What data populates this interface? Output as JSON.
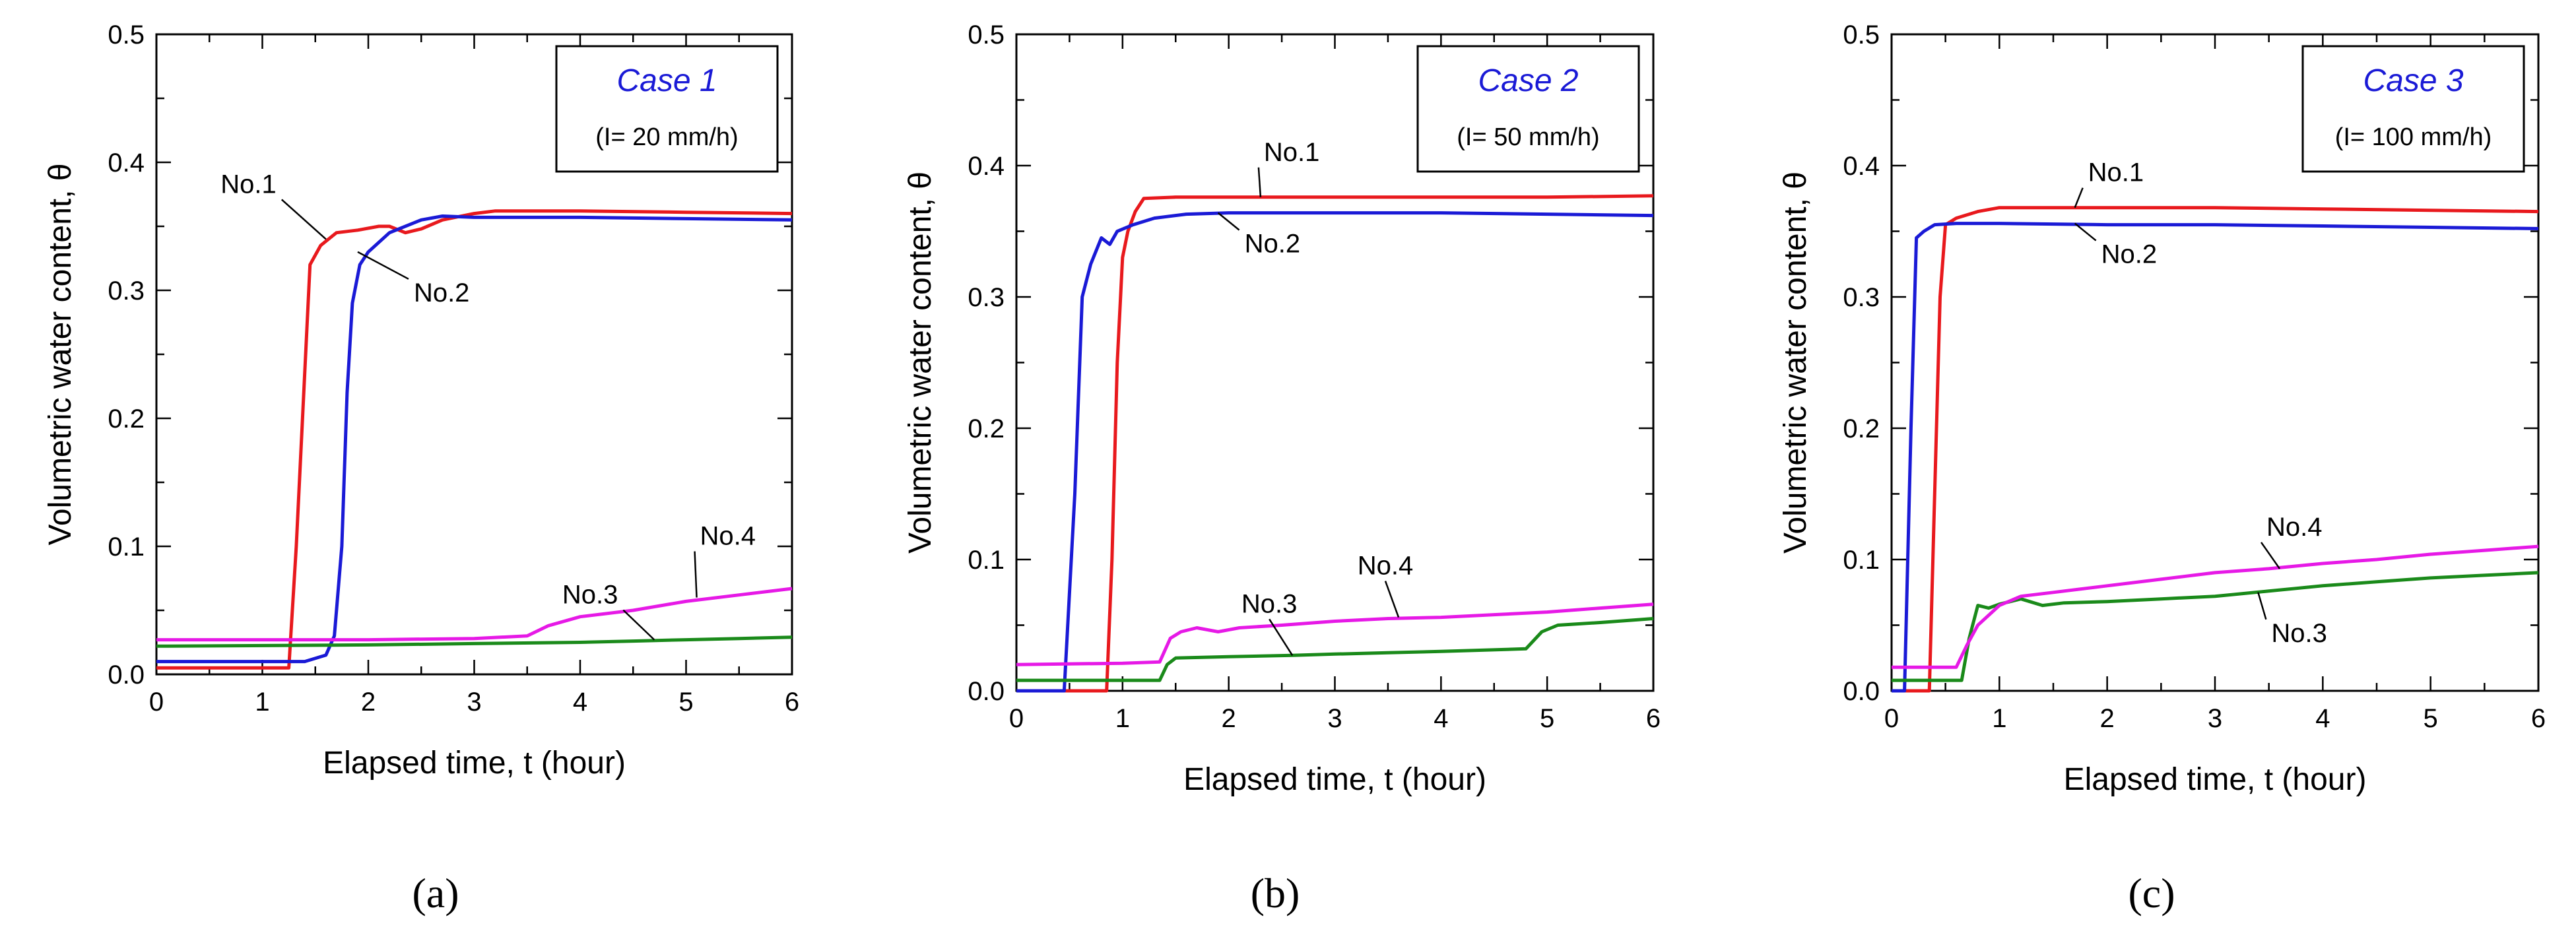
{
  "figure": {
    "panel_labels": [
      "(a)",
      "(b)",
      "(c)"
    ]
  },
  "chart_data": [
    {
      "type": "line",
      "panel": "(a)",
      "title": "Case 1",
      "subtitle": "(I= 20 mm/h)",
      "xlabel": "Elapsed time, t (hour)",
      "ylabel": "Volumetric water content, θ",
      "xlim": [
        0,
        6
      ],
      "ylim": [
        0,
        0.5
      ],
      "xticks": [
        0,
        1,
        2,
        3,
        4,
        5,
        6
      ],
      "yticks": [
        0.0,
        0.1,
        0.2,
        0.3,
        0.4,
        0.5
      ],
      "xtick_labels": [
        "0",
        "1",
        "2",
        "3",
        "4",
        "5",
        "6"
      ],
      "ytick_labels": [
        "0.0",
        "0.1",
        "0.2",
        "0.3",
        "0.4",
        "0.5"
      ],
      "series": [
        {
          "name": "No.1",
          "color": "#e8191d",
          "x": [
            0,
            1.25,
            1.32,
            1.45,
            1.55,
            1.7,
            1.9,
            2.1,
            2.2,
            2.35,
            2.5,
            2.7,
            3.0,
            3.2,
            4.0,
            5.0,
            6.0
          ],
          "y": [
            0.005,
            0.005,
            0.1,
            0.32,
            0.335,
            0.345,
            0.347,
            0.35,
            0.35,
            0.345,
            0.348,
            0.355,
            0.36,
            0.362,
            0.362,
            0.361,
            0.36
          ]
        },
        {
          "name": "No.2",
          "color": "#1a1ad6",
          "x": [
            0,
            1.4,
            1.6,
            1.68,
            1.75,
            1.8,
            1.85,
            1.92,
            2.0,
            2.2,
            2.5,
            2.7,
            3.0,
            4.0,
            5.0,
            6.0
          ],
          "y": [
            0.01,
            0.01,
            0.015,
            0.03,
            0.1,
            0.22,
            0.29,
            0.32,
            0.33,
            0.345,
            0.355,
            0.358,
            0.357,
            0.357,
            0.356,
            0.355
          ]
        },
        {
          "name": "No.3",
          "color": "#1a8a1a",
          "x": [
            0,
            2.0,
            3.0,
            4.0,
            4.5,
            5.0,
            5.5,
            6.0
          ],
          "y": [
            0.022,
            0.023,
            0.024,
            0.025,
            0.026,
            0.027,
            0.028,
            0.029
          ]
        },
        {
          "name": "No.4",
          "color": "#e619e6",
          "x": [
            0,
            1.0,
            2.0,
            3.0,
            3.5,
            3.7,
            4.0,
            4.5,
            5.0,
            5.5,
            6.0
          ],
          "y": [
            0.027,
            0.027,
            0.027,
            0.028,
            0.03,
            0.038,
            0.045,
            0.05,
            0.057,
            0.062,
            0.067
          ]
        }
      ],
      "annotations": [
        {
          "text": "No.1",
          "series": "No.1"
        },
        {
          "text": "No.2",
          "series": "No.2"
        },
        {
          "text": "No.3",
          "series": "No.3"
        },
        {
          "text": "No.4",
          "series": "No.4"
        }
      ]
    },
    {
      "type": "line",
      "panel": "(b)",
      "title": "Case 2",
      "subtitle": "(I= 50 mm/h)",
      "xlabel": "Elapsed time, t (hour)",
      "ylabel": "Volumetric water content, θ",
      "xlim": [
        0,
        6
      ],
      "ylim": [
        0,
        0.5
      ],
      "xticks": [
        0,
        1,
        2,
        3,
        4,
        5,
        6
      ],
      "yticks": [
        0.0,
        0.1,
        0.2,
        0.3,
        0.4,
        0.5
      ],
      "xtick_labels": [
        "0",
        "1",
        "2",
        "3",
        "4",
        "5",
        "6"
      ],
      "ytick_labels": [
        "0.0",
        "0.1",
        "0.2",
        "0.3",
        "0.4",
        "0.5"
      ],
      "series": [
        {
          "name": "No.1",
          "color": "#e8191d",
          "x": [
            0,
            0.85,
            0.9,
            0.95,
            1.0,
            1.05,
            1.12,
            1.2,
            1.5,
            2.0,
            3.0,
            4.0,
            5.0,
            6.0
          ],
          "y": [
            0.0,
            0.0,
            0.1,
            0.25,
            0.33,
            0.35,
            0.365,
            0.375,
            0.376,
            0.376,
            0.376,
            0.376,
            0.376,
            0.377
          ]
        },
        {
          "name": "No.2",
          "color": "#1a1ad6",
          "x": [
            0,
            0.45,
            0.55,
            0.62,
            0.7,
            0.8,
            0.88,
            0.95,
            1.1,
            1.3,
            1.6,
            2.0,
            3.0,
            4.0,
            5.0,
            6.0
          ],
          "y": [
            0.0,
            0.0,
            0.15,
            0.3,
            0.325,
            0.345,
            0.34,
            0.35,
            0.355,
            0.36,
            0.363,
            0.364,
            0.364,
            0.364,
            0.363,
            0.362
          ]
        },
        {
          "name": "No.3",
          "color": "#1a8a1a",
          "x": [
            0,
            1.35,
            1.42,
            1.5,
            2.0,
            2.6,
            3.0,
            3.5,
            4.0,
            4.8,
            4.95,
            5.1,
            5.5,
            6.0
          ],
          "y": [
            0.008,
            0.008,
            0.02,
            0.025,
            0.026,
            0.027,
            0.028,
            0.029,
            0.03,
            0.032,
            0.045,
            0.05,
            0.052,
            0.055
          ]
        },
        {
          "name": "No.4",
          "color": "#e619e6",
          "x": [
            0,
            1.0,
            1.35,
            1.45,
            1.55,
            1.7,
            1.9,
            2.1,
            2.5,
            3.0,
            3.5,
            4.0,
            4.5,
            5.0,
            5.5,
            6.0
          ],
          "y": [
            0.02,
            0.021,
            0.022,
            0.04,
            0.045,
            0.048,
            0.045,
            0.048,
            0.05,
            0.053,
            0.055,
            0.056,
            0.058,
            0.06,
            0.063,
            0.066
          ]
        }
      ],
      "annotations": [
        {
          "text": "No.1",
          "series": "No.1"
        },
        {
          "text": "No.2",
          "series": "No.2"
        },
        {
          "text": "No.3",
          "series": "No.3"
        },
        {
          "text": "No.4",
          "series": "No.4"
        }
      ]
    },
    {
      "type": "line",
      "panel": "(c)",
      "title": "Case 3",
      "subtitle": "(I= 100 mm/h)",
      "xlabel": "Elapsed time, t (hour)",
      "ylabel": "Volumetric water content, θ",
      "xlim": [
        0,
        6
      ],
      "ylim": [
        0,
        0.5
      ],
      "xticks": [
        0,
        1,
        2,
        3,
        4,
        5,
        6
      ],
      "yticks": [
        0.0,
        0.1,
        0.2,
        0.3,
        0.4,
        0.5
      ],
      "xtick_labels": [
        "0",
        "1",
        "2",
        "3",
        "4",
        "5",
        "6"
      ],
      "ytick_labels": [
        "0.0",
        "0.1",
        "0.2",
        "0.3",
        "0.4",
        "0.5"
      ],
      "series": [
        {
          "name": "No.1",
          "color": "#e8191d",
          "x": [
            0,
            0.35,
            0.4,
            0.45,
            0.5,
            0.6,
            0.8,
            1.0,
            2.0,
            3.0,
            4.0,
            5.0,
            6.0
          ],
          "y": [
            0.0,
            0.0,
            0.15,
            0.3,
            0.355,
            0.36,
            0.365,
            0.368,
            0.368,
            0.368,
            0.367,
            0.366,
            0.365
          ]
        },
        {
          "name": "No.2",
          "color": "#1a1ad6",
          "x": [
            0,
            0.12,
            0.18,
            0.23,
            0.3,
            0.4,
            0.6,
            1.0,
            2.0,
            3.0,
            4.0,
            5.0,
            6.0
          ],
          "y": [
            0.0,
            0.0,
            0.2,
            0.345,
            0.35,
            0.355,
            0.356,
            0.356,
            0.355,
            0.355,
            0.354,
            0.353,
            0.352
          ]
        },
        {
          "name": "No.3",
          "color": "#1a8a1a",
          "x": [
            0,
            0.65,
            0.72,
            0.8,
            0.9,
            1.0,
            1.2,
            1.4,
            1.6,
            2.0,
            2.5,
            3.0,
            3.5,
            4.0,
            4.5,
            5.0,
            5.5,
            6.0
          ],
          "y": [
            0.008,
            0.008,
            0.04,
            0.065,
            0.063,
            0.066,
            0.07,
            0.065,
            0.067,
            0.068,
            0.07,
            0.072,
            0.076,
            0.08,
            0.083,
            0.086,
            0.088,
            0.09
          ]
        },
        {
          "name": "No.4",
          "color": "#e619e6",
          "x": [
            0,
            0.6,
            0.7,
            0.8,
            1.0,
            1.2,
            1.5,
            2.0,
            2.5,
            3.0,
            3.5,
            4.0,
            4.5,
            5.0,
            5.5,
            6.0
          ],
          "y": [
            0.018,
            0.018,
            0.035,
            0.05,
            0.065,
            0.072,
            0.075,
            0.08,
            0.085,
            0.09,
            0.093,
            0.097,
            0.1,
            0.104,
            0.107,
            0.11
          ]
        }
      ],
      "annotations": [
        {
          "text": "No.1",
          "series": "No.1"
        },
        {
          "text": "No.2",
          "series": "No.2"
        },
        {
          "text": "No.3",
          "series": "No.3"
        },
        {
          "text": "No.4",
          "series": "No.4"
        }
      ]
    }
  ]
}
